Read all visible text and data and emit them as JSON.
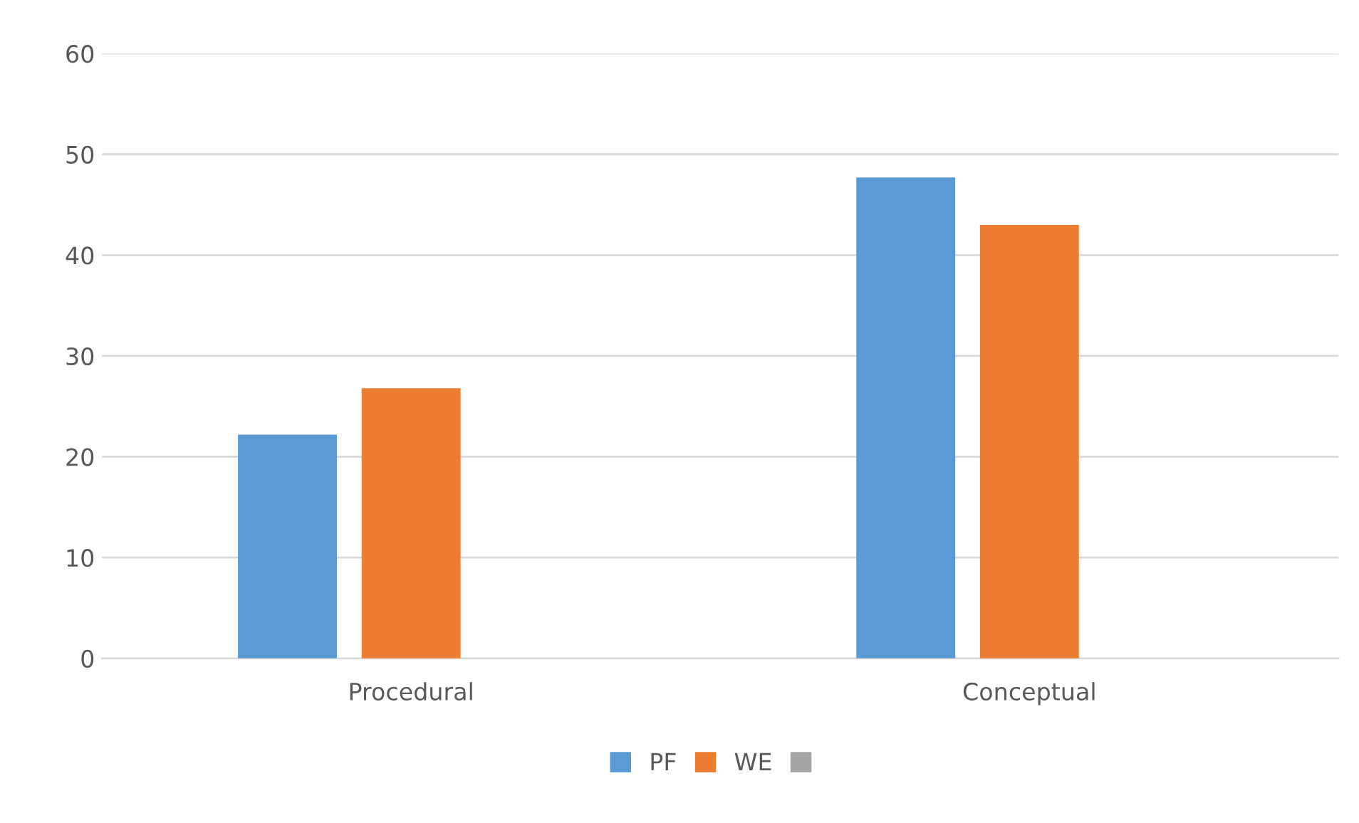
{
  "chart_data": {
    "type": "bar",
    "categories": [
      "Procedural",
      "Conceptual"
    ],
    "series": [
      {
        "name": "PF",
        "color": "#5b9bd5",
        "values": [
          22.2,
          47.7
        ]
      },
      {
        "name": "WE",
        "color": "#ed7d31",
        "values": [
          26.8,
          43.0
        ]
      },
      {
        "color": "#a5a5a5",
        "values": [
          null,
          null
        ]
      }
    ],
    "ylim": [
      0,
      60
    ],
    "yticks": [
      0,
      10,
      20,
      30,
      40,
      50,
      60
    ],
    "grid": "y",
    "legend": "bottom"
  }
}
